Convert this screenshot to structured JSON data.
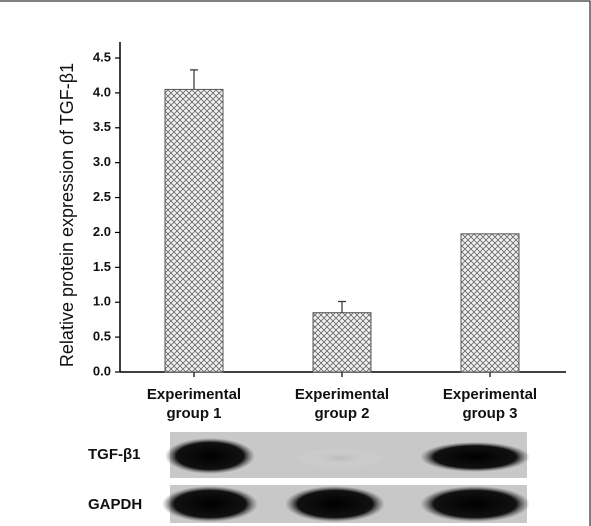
{
  "chart_data": {
    "type": "bar",
    "y_label": "Relative protein expression of TGF-β1",
    "categories": [
      "Experimental group 1",
      "Experimental group 2",
      "Experimental group 3"
    ],
    "values": [
      4.05,
      0.85,
      1.98
    ],
    "errors": [
      0.28,
      0.16,
      null
    ],
    "color": "#555555",
    "ylim": [
      0,
      4.5
    ],
    "yticks": [
      {
        "value": 0,
        "label": "0.0"
      },
      {
        "value": 0.5,
        "label": "0.5"
      },
      {
        "value": 1,
        "label": "1.0"
      },
      {
        "value": 1.5,
        "label": "1.5"
      },
      {
        "value": 2,
        "label": "2.0"
      },
      {
        "value": 2.5,
        "label": "2.5"
      },
      {
        "value": 3,
        "label": "3.0"
      },
      {
        "value": 3.5,
        "label": "3.5"
      },
      {
        "value": 4,
        "label": "4.0"
      },
      {
        "value": 4.5,
        "label": "4.5"
      }
    ]
  },
  "blot": {
    "rows": [
      {
        "label": "TGF-β1"
      },
      {
        "label": "GAPDH"
      }
    ]
  }
}
